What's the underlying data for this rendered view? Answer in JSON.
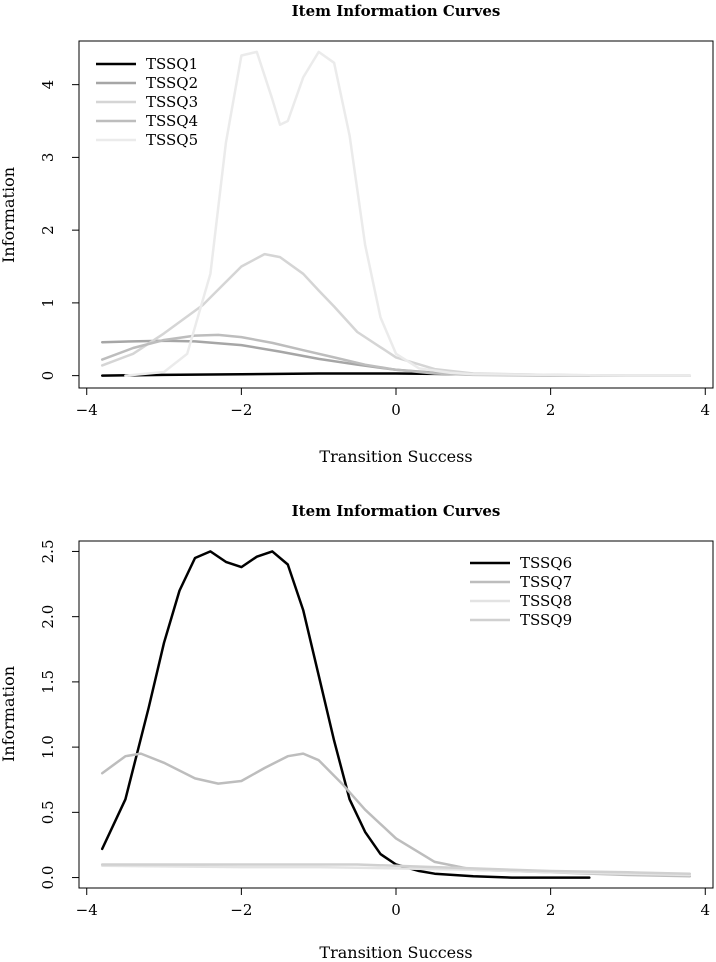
{
  "chart_data": [
    {
      "type": "line",
      "title": "Item Information Curves",
      "xlabel": "Transition Success",
      "ylabel": "Information",
      "xlim": [
        -4.1,
        4.1
      ],
      "ylim": [
        -0.17,
        4.6
      ],
      "xticks": [
        -4,
        -2,
        0,
        2,
        4
      ],
      "xtick_labels": [
        "−4",
        "−2",
        "0",
        "2",
        "4"
      ],
      "yticks": [
        0,
        1,
        2,
        3,
        4
      ],
      "ytick_labels": [
        "0",
        "1",
        "2",
        "3",
        "4"
      ],
      "legend_position": "top-left",
      "series": [
        {
          "name": "TSSQ1",
          "color": "#000000",
          "x": [
            -3.8,
            -3.0,
            -2.0,
            -1.0,
            0.0,
            1.0
          ],
          "y": [
            0.0,
            0.01,
            0.02,
            0.03,
            0.03,
            0.02
          ]
        },
        {
          "name": "TSSQ2",
          "color": "#a6a6a6",
          "x": [
            -3.8,
            -3.4,
            -3.0,
            -2.6,
            -2.0,
            -1.5,
            -1.0,
            -0.5,
            0.0,
            0.5,
            1.0,
            2.0,
            2.5
          ],
          "y": [
            0.46,
            0.47,
            0.48,
            0.47,
            0.42,
            0.33,
            0.23,
            0.15,
            0.08,
            0.04,
            0.02,
            0.01,
            0.0
          ]
        },
        {
          "name": "TSSQ3",
          "color": "#d5d5d5",
          "x": [
            -3.8,
            -3.4,
            -3.0,
            -2.5,
            -2.0,
            -1.7,
            -1.5,
            -1.2,
            -1.0,
            -0.8,
            -0.5,
            0.0,
            0.5,
            1.0,
            2.0,
            3.0,
            3.8
          ],
          "y": [
            0.14,
            0.3,
            0.58,
            0.97,
            1.5,
            1.67,
            1.63,
            1.4,
            1.17,
            0.95,
            0.6,
            0.25,
            0.09,
            0.03,
            0.01,
            0.0,
            0.0
          ]
        },
        {
          "name": "TSSQ4",
          "color": "#bdbdbd",
          "x": [
            -3.8,
            -3.4,
            -3.0,
            -2.6,
            -2.3,
            -2.0,
            -1.6,
            -1.2,
            -0.8,
            -0.4,
            0.0,
            0.5,
            1.0,
            2.0,
            3.0,
            3.8
          ],
          "y": [
            0.22,
            0.38,
            0.49,
            0.55,
            0.56,
            0.53,
            0.45,
            0.35,
            0.25,
            0.15,
            0.08,
            0.03,
            0.01,
            0.0,
            0.0,
            0.0
          ]
        },
        {
          "name": "TSSQ5",
          "color": "#ebebeb",
          "x": [
            -3.5,
            -3.0,
            -2.7,
            -2.4,
            -2.2,
            -2.0,
            -1.8,
            -1.6,
            -1.5,
            -1.4,
            -1.2,
            -1.0,
            -0.8,
            -0.6,
            -0.4,
            -0.2,
            0.0,
            0.3,
            0.7,
            1.0,
            2.0,
            3.0,
            3.8
          ],
          "y": [
            0.0,
            0.05,
            0.3,
            1.4,
            3.2,
            4.4,
            4.45,
            3.8,
            3.45,
            3.5,
            4.1,
            4.45,
            4.3,
            3.3,
            1.8,
            0.8,
            0.3,
            0.1,
            0.04,
            0.02,
            0.01,
            0.0,
            0.0
          ]
        }
      ]
    },
    {
      "type": "line",
      "title": "Item Information Curves",
      "xlabel": "Transition Success",
      "ylabel": "Information",
      "xlim": [
        -4.1,
        4.1
      ],
      "ylim": [
        -0.08,
        2.58
      ],
      "xticks": [
        -4,
        -2,
        0,
        2,
        4
      ],
      "xtick_labels": [
        "−4",
        "−2",
        "0",
        "2",
        "4"
      ],
      "yticks": [
        0.0,
        0.5,
        1.0,
        1.5,
        2.0,
        2.5
      ],
      "ytick_labels": [
        "0.0",
        "0.5",
        "1.0",
        "1.5",
        "2.0",
        "2.5"
      ],
      "legend_position": "top-right",
      "series": [
        {
          "name": "TSSQ6",
          "color": "#000000",
          "x": [
            -3.8,
            -3.5,
            -3.2,
            -3.0,
            -2.8,
            -2.6,
            -2.4,
            -2.2,
            -2.0,
            -1.8,
            -1.6,
            -1.4,
            -1.2,
            -1.0,
            -0.8,
            -0.6,
            -0.4,
            -0.2,
            0.0,
            0.3,
            0.5,
            1.0,
            1.5,
            2.0,
            2.5
          ],
          "y": [
            0.22,
            0.6,
            1.3,
            1.8,
            2.2,
            2.45,
            2.5,
            2.42,
            2.38,
            2.46,
            2.5,
            2.4,
            2.05,
            1.55,
            1.05,
            0.6,
            0.35,
            0.18,
            0.1,
            0.05,
            0.03,
            0.01,
            0.0,
            0.0,
            0.0
          ]
        },
        {
          "name": "TSSQ7",
          "color": "#bdbdbd",
          "x": [
            -3.8,
            -3.5,
            -3.3,
            -3.0,
            -2.6,
            -2.3,
            -2.0,
            -1.7,
            -1.4,
            -1.2,
            -1.0,
            -0.7,
            -0.4,
            0.0,
            0.5,
            1.0,
            2.0,
            3.0,
            3.8
          ],
          "y": [
            0.8,
            0.93,
            0.95,
            0.88,
            0.76,
            0.72,
            0.74,
            0.84,
            0.93,
            0.95,
            0.9,
            0.72,
            0.52,
            0.3,
            0.12,
            0.06,
            0.04,
            0.02,
            0.01
          ]
        },
        {
          "name": "TSSQ8",
          "color": "#e3e3e3",
          "x": [
            -3.8,
            -2.0,
            -1.0,
            0.0,
            1.0,
            2.0,
            3.0,
            3.8
          ],
          "y": [
            0.09,
            0.08,
            0.08,
            0.07,
            0.06,
            0.04,
            0.03,
            0.02
          ]
        },
        {
          "name": "TSSQ9",
          "color": "#d0d0d0",
          "x": [
            -3.8,
            -2.0,
            -1.0,
            -0.5,
            0.0,
            0.5,
            1.0,
            2.0,
            3.0,
            3.8
          ],
          "y": [
            0.1,
            0.1,
            0.1,
            0.1,
            0.09,
            0.08,
            0.07,
            0.05,
            0.04,
            0.03
          ]
        }
      ]
    }
  ]
}
